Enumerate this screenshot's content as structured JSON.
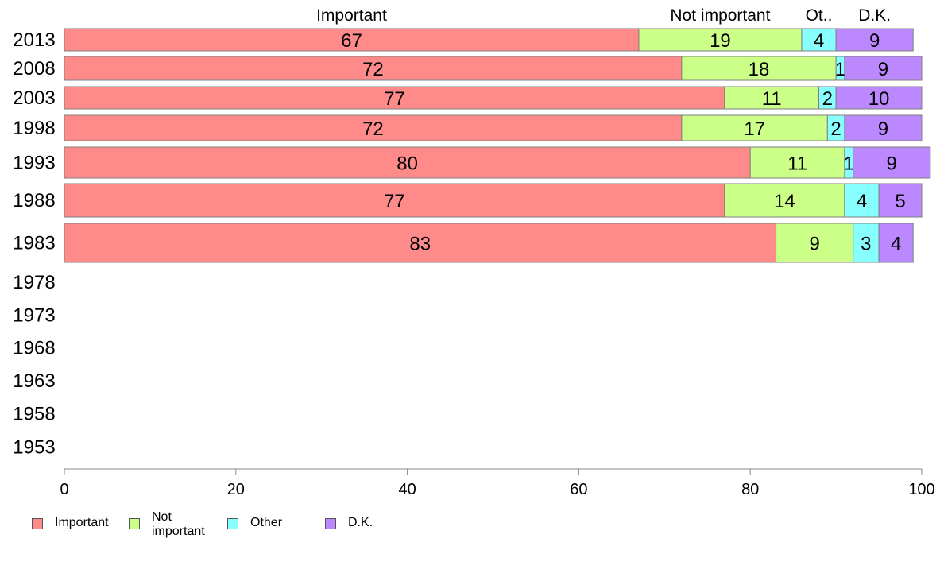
{
  "chart_data": {
    "type": "bar",
    "orientation": "horizontal",
    "stacked": true,
    "categories": [
      "2013",
      "2008",
      "2003",
      "1998",
      "1993",
      "1988",
      "1983",
      "1978",
      "1973",
      "1968",
      "1963",
      "1958",
      "1953"
    ],
    "series": [
      {
        "name": "Important",
        "color": "#ff8a8a",
        "values": [
          67,
          72,
          77,
          72,
          80,
          77,
          83,
          null,
          null,
          null,
          null,
          null,
          null
        ]
      },
      {
        "name": "Not important",
        "color": "#ccff88",
        "values": [
          19,
          18,
          11,
          17,
          11,
          14,
          9,
          null,
          null,
          null,
          null,
          null,
          null
        ]
      },
      {
        "name": "Other",
        "color": "#88ffff",
        "values": [
          4,
          1,
          2,
          2,
          1,
          4,
          3,
          null,
          null,
          null,
          null,
          null,
          null
        ]
      },
      {
        "name": "D.K.",
        "color": "#bb88ff",
        "values": [
          9,
          9,
          10,
          9,
          9,
          5,
          4,
          null,
          null,
          null,
          null,
          null,
          null
        ]
      }
    ],
    "top_labels": [
      "Important",
      "Not important",
      "Ot..",
      "D.K."
    ],
    "xlim": [
      0,
      100
    ],
    "xticks": [
      0,
      20,
      40,
      60,
      80,
      100
    ],
    "grid": false,
    "legend_position": "bottom-left"
  },
  "legend": [
    {
      "label": "Important",
      "color": "#ff8a8a"
    },
    {
      "label": "Not\nimportant",
      "color": "#ccff88"
    },
    {
      "label": "Other",
      "color": "#88ffff"
    },
    {
      "label": "D.K.",
      "color": "#bb88ff"
    }
  ]
}
